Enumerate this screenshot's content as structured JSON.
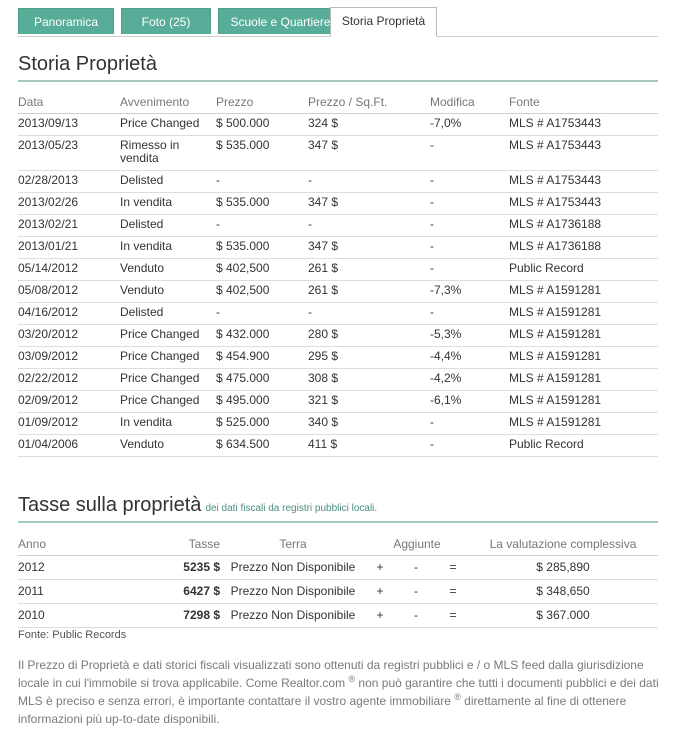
{
  "tabs": [
    {
      "label": "Panoramica"
    },
    {
      "label": "Foto (25)"
    },
    {
      "label": "Scuole e Quartiere"
    },
    {
      "label": "Storia Proprietà"
    }
  ],
  "history": {
    "title": "Storia Proprietà",
    "columns": [
      "Data",
      "Avvenimento",
      "Prezzo",
      "Prezzo / Sq.Ft.",
      "Modifica",
      "Fonte"
    ],
    "rows": [
      [
        "2013/09/13",
        "Price Changed",
        "$ 500.000",
        "324 $",
        "-7,0%",
        "MLS # A1753443"
      ],
      [
        "2013/05/23",
        "Rimesso in vendita",
        "$ 535.000",
        "347 $",
        "-",
        "MLS # A1753443"
      ],
      [
        "02/28/2013",
        "Delisted",
        "-",
        "-",
        "-",
        "MLS # A1753443"
      ],
      [
        "2013/02/26",
        "In vendita",
        "$ 535.000",
        "347 $",
        "-",
        "MLS # A1753443"
      ],
      [
        "2013/02/21",
        "Delisted",
        "-",
        "-",
        "-",
        "MLS # A1736188"
      ],
      [
        "2013/01/21",
        "In vendita",
        "$ 535.000",
        "347 $",
        "-",
        "MLS # A1736188"
      ],
      [
        "05/14/2012",
        "Venduto",
        "$ 402,500",
        "261 $",
        "-",
        "Public Record"
      ],
      [
        "05/08/2012",
        "Venduto",
        "$ 402,500",
        "261 $",
        "-7,3%",
        "MLS # A1591281"
      ],
      [
        "04/16/2012",
        "Delisted",
        "-",
        "-",
        "-",
        "MLS # A1591281"
      ],
      [
        "03/20/2012",
        "Price Changed",
        "$ 432.000",
        "280 $",
        "-5,3%",
        "MLS # A1591281"
      ],
      [
        "03/09/2012",
        "Price Changed",
        "$ 454.900",
        "295 $",
        "-4,4%",
        "MLS # A1591281"
      ],
      [
        "02/22/2012",
        "Price Changed",
        "$ 475.000",
        "308 $",
        "-4,2%",
        "MLS # A1591281"
      ],
      [
        "02/09/2012",
        "Price Changed",
        "$ 495.000",
        "321 $",
        "-6,1%",
        "MLS # A1591281"
      ],
      [
        "01/09/2012",
        "In vendita",
        "$ 525.000",
        "340 $",
        "-",
        "MLS # A1591281"
      ],
      [
        "01/04/2006",
        "Venduto",
        "$ 634.500",
        "411 $",
        "-",
        "Public Record"
      ]
    ]
  },
  "tax": {
    "title": "Tasse sulla proprietà",
    "subtitle": "dei dati fiscali da registri pubblici locali.",
    "columns": [
      "Anno",
      "Tasse",
      "Terra",
      "Aggiunte",
      "La valutazione complessiva"
    ],
    "rows": [
      {
        "year": "2012",
        "tax": "5235 $",
        "land": "Prezzo Non Disponibile",
        "plus": "+",
        "additions": "-",
        "eq": "=",
        "total": "$ 285,890"
      },
      {
        "year": "2011",
        "tax": "6427 $",
        "land": "Prezzo Non Disponibile",
        "plus": "+",
        "additions": "-",
        "eq": "=",
        "total": "$ 348,650"
      },
      {
        "year": "2010",
        "tax": "7298 $",
        "land": "Prezzo Non Disponibile",
        "plus": "+",
        "additions": "-",
        "eq": "=",
        "total": "$ 367.000"
      }
    ],
    "source": "Fonte: Public Records"
  },
  "disclaimer": {
    "part1": "Il Prezzo di Proprietà e dati storici fiscali visualizzati sono ottenuti da registri pubblici e / o MLS feed dalla giurisdizione locale in cui l'immobile si trova applicabile. Come Realtor.com ",
    "reg": "®",
    "part2": " non può garantire che tutti i documenti pubblici e dei dati MLS è preciso e senza errori, è importante contattare il vostro agente immobiliare ",
    "part3": " direttamente al fine di ottenere informazioni più up-to-date disponibili."
  }
}
